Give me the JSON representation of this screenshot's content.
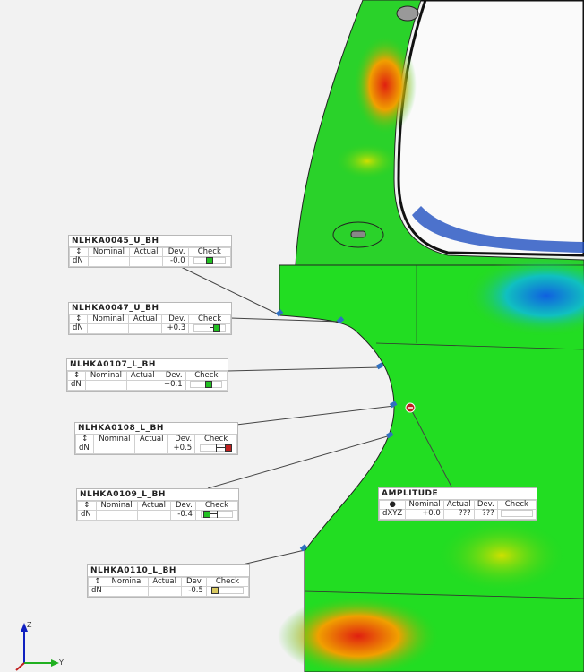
{
  "labels": [
    {
      "name": "NLHKA0045_U_BH",
      "headers": [
        "↕",
        "Nominal",
        "Actual",
        "Dev.",
        "Check"
      ],
      "row": [
        "dN",
        "",
        "",
        "-0.0"
      ],
      "dev": -0.0,
      "check_color": "#22c022"
    },
    {
      "name": "NLHKA0047_U_BH",
      "headers": [
        "↕",
        "Nominal",
        "Actual",
        "Dev.",
        "Check"
      ],
      "row": [
        "dN",
        "",
        "",
        "+0.3"
      ],
      "dev": 0.3,
      "check_color": "#22c022"
    },
    {
      "name": "NLHKA0107_L_BH",
      "headers": [
        "↕",
        "Nominal",
        "Actual",
        "Dev.",
        "Check"
      ],
      "row": [
        "dN",
        "",
        "",
        "+0.1"
      ],
      "dev": 0.1,
      "check_color": "#22c022"
    },
    {
      "name": "NLHKA0108_L_BH",
      "headers": [
        "↕",
        "Nominal",
        "Actual",
        "Dev.",
        "Check"
      ],
      "row": [
        "dN",
        "",
        "",
        "+0.5"
      ],
      "dev": 0.5,
      "check_color": "#c02020"
    },
    {
      "name": "NLHKA0109_L_BH",
      "headers": [
        "↕",
        "Nominal",
        "Actual",
        "Dev.",
        "Check"
      ],
      "row": [
        "dN",
        "",
        "",
        "-0.4"
      ],
      "dev": -0.4,
      "check_color": "#22c022"
    },
    {
      "name": "NLHKA0110_L_BH",
      "headers": [
        "↕",
        "Nominal",
        "Actual",
        "Dev.",
        "Check"
      ],
      "row": [
        "dN",
        "",
        "",
        "-0.5"
      ],
      "dev": -0.5,
      "check_color": "#d8c860"
    }
  ],
  "amplitude": {
    "name": "AMPLITUDE",
    "headers": [
      "●",
      "Nominal",
      "Actual",
      "Dev.",
      "Check"
    ],
    "row": [
      "dXYZ",
      "+0.0",
      "???",
      "???"
    ]
  },
  "axes": {
    "z": "Z",
    "y": "Y"
  },
  "colors": {
    "good": "#22c022",
    "high": "#c02020",
    "warn": "#d8c860",
    "surface": "#22dd22"
  }
}
